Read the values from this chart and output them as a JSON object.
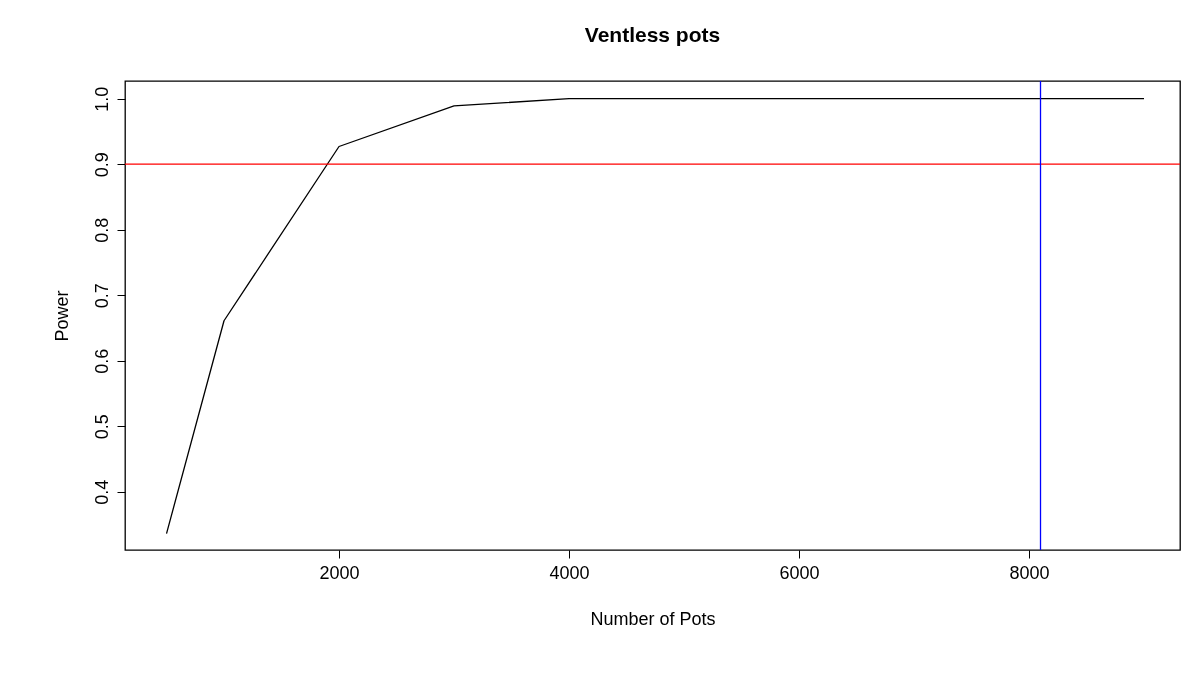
{
  "chart_data": {
    "type": "line",
    "title": "Ventless pots",
    "xlabel": "Number of Pots",
    "ylabel": "Power",
    "x": [
      500,
      1000,
      2000,
      3000,
      4000,
      5000,
      6000,
      7000,
      8000,
      9000
    ],
    "series": [
      {
        "color": "#000000",
        "values": [
          0.336,
          0.661,
          0.927,
          0.989,
          1.0,
          1.0,
          1.0,
          1.0,
          1.0,
          1.0
        ]
      }
    ],
    "xlim": [
      139,
      9313
    ],
    "ylim": [
      0.311,
      1.027
    ],
    "xticks": [
      2000,
      4000,
      6000,
      8000
    ],
    "yticks": [
      0.4,
      0.5,
      0.6,
      0.7,
      0.8,
      0.9,
      {
        "value": 1,
        "label": "1.0"
      }
    ],
    "ref_lines": [
      {
        "axis": "y",
        "value": 0.9,
        "color": "#ff0000"
      },
      {
        "axis": "x",
        "value": 8100,
        "color": "#0000ff"
      }
    ],
    "grid": false,
    "marker": "none",
    "line_style": "solid"
  }
}
